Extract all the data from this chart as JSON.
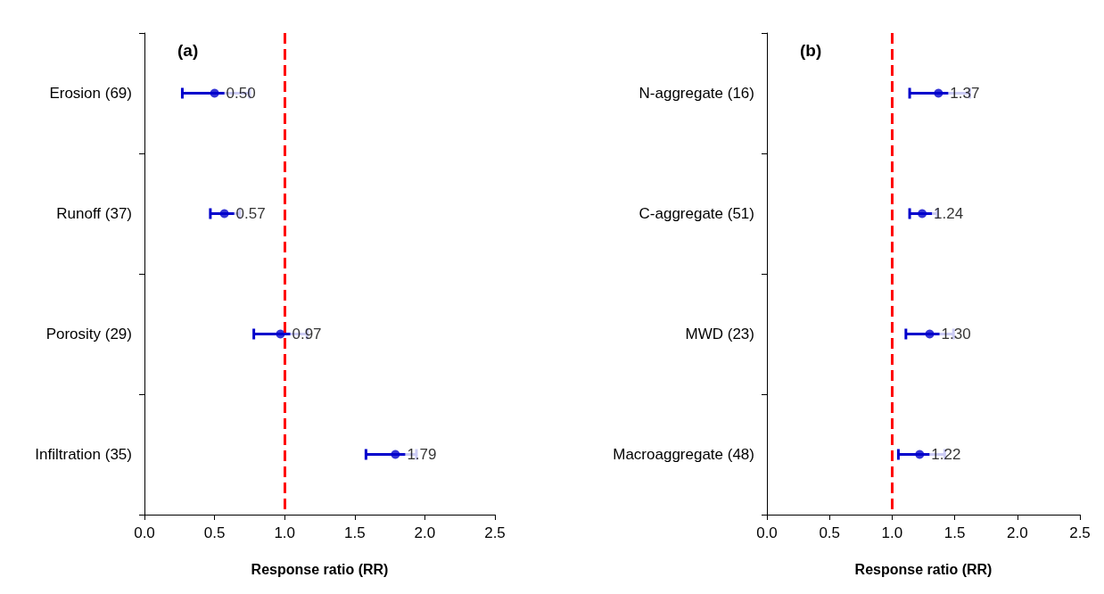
{
  "chart_data": [
    {
      "type": "scatter",
      "orientation": "horizontal",
      "title": "(a)",
      "xlabel": "Response ratio (RR)",
      "categories": [
        "Erosion (69)",
        "Runoff (37)",
        "Porosity (29)",
        "Infiltration (35)"
      ],
      "series": [
        {
          "color": "#0000cc",
          "values": [
            0.5,
            0.57,
            0.97,
            1.79
          ],
          "value_labels": [
            "0.50",
            "0.57",
            "0.97",
            "1.79"
          ],
          "errors": [
            [
              0.27,
              0.75
            ],
            [
              0.47,
              0.68
            ],
            [
              0.78,
              1.16
            ],
            [
              1.58,
              1.94
            ]
          ]
        }
      ],
      "marker": "circle",
      "xlim": [
        0,
        2.5
      ],
      "xticks": [
        {
          "value": 0,
          "label": "0.0"
        },
        {
          "value": 0.5,
          "label": "0.5"
        },
        {
          "value": 1,
          "label": "1.0"
        },
        {
          "value": 1.5,
          "label": "1.5"
        },
        {
          "value": 2,
          "label": "2.0"
        },
        {
          "value": 2.5,
          "label": "2.5"
        }
      ],
      "ref_lines": [
        {
          "axis": "x",
          "value": 1,
          "color": "#ff0000",
          "line_style": "dashed"
        }
      ],
      "grid": false
    },
    {
      "type": "scatter",
      "orientation": "horizontal",
      "title": "(b)",
      "xlabel": "Response ratio (RR)",
      "categories": [
        "N-aggregate (16)",
        "C-aggregate (51)",
        "MWD (23)",
        "Macroaggregate (48)"
      ],
      "series": [
        {
          "color": "#0000cc",
          "values": [
            1.37,
            1.24,
            1.3,
            1.22
          ],
          "value_labels": [
            "1.37",
            "1.24",
            "1.30",
            "1.22"
          ],
          "errors": [
            [
              1.14,
              1.62
            ],
            [
              1.14,
              1.36
            ],
            [
              1.11,
              1.49
            ],
            [
              1.05,
              1.42
            ]
          ]
        }
      ],
      "marker": "circle",
      "xlim": [
        0,
        2.5
      ],
      "xticks": [
        {
          "value": 0,
          "label": "0.0"
        },
        {
          "value": 0.5,
          "label": "0.5"
        },
        {
          "value": 1,
          "label": "1.0"
        },
        {
          "value": 1.5,
          "label": "1.5"
        },
        {
          "value": 2,
          "label": "2.0"
        },
        {
          "value": 2.5,
          "label": "2.5"
        }
      ],
      "ref_lines": [
        {
          "axis": "x",
          "value": 1,
          "color": "#ff0000",
          "line_style": "dashed"
        }
      ],
      "grid": false
    }
  ]
}
